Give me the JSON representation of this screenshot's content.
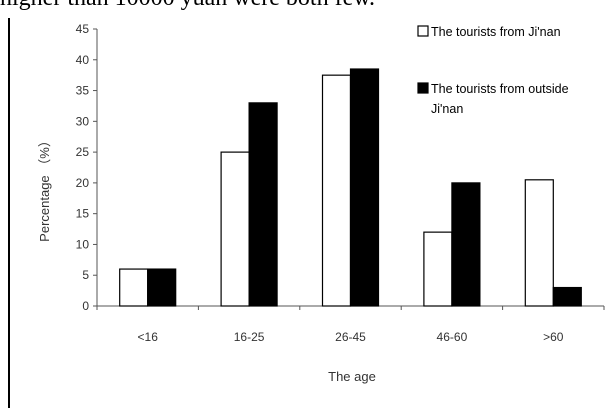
{
  "page": {
    "top_text": "higher than 10000 yuan were both few."
  },
  "chart_data": {
    "type": "bar",
    "title": "",
    "xlabel": "The age",
    "ylabel": "Percentage （%）",
    "ylim": [
      0,
      45
    ],
    "yticks": [
      0,
      5,
      10,
      15,
      20,
      25,
      30,
      35,
      40,
      45
    ],
    "categories": [
      "<16",
      "16-25",
      "26-45",
      "46-60",
      ">60"
    ],
    "series": [
      {
        "name": "The tourists from Ji'nan",
        "values": [
          6,
          25,
          37.5,
          12,
          20.5
        ],
        "color": "#ffffff"
      },
      {
        "name": "The tourists from outside Ji'nan",
        "values": [
          6,
          33,
          38.5,
          20,
          3
        ],
        "color": "#000000"
      }
    ],
    "grid": false,
    "legend_position": "top-right"
  }
}
